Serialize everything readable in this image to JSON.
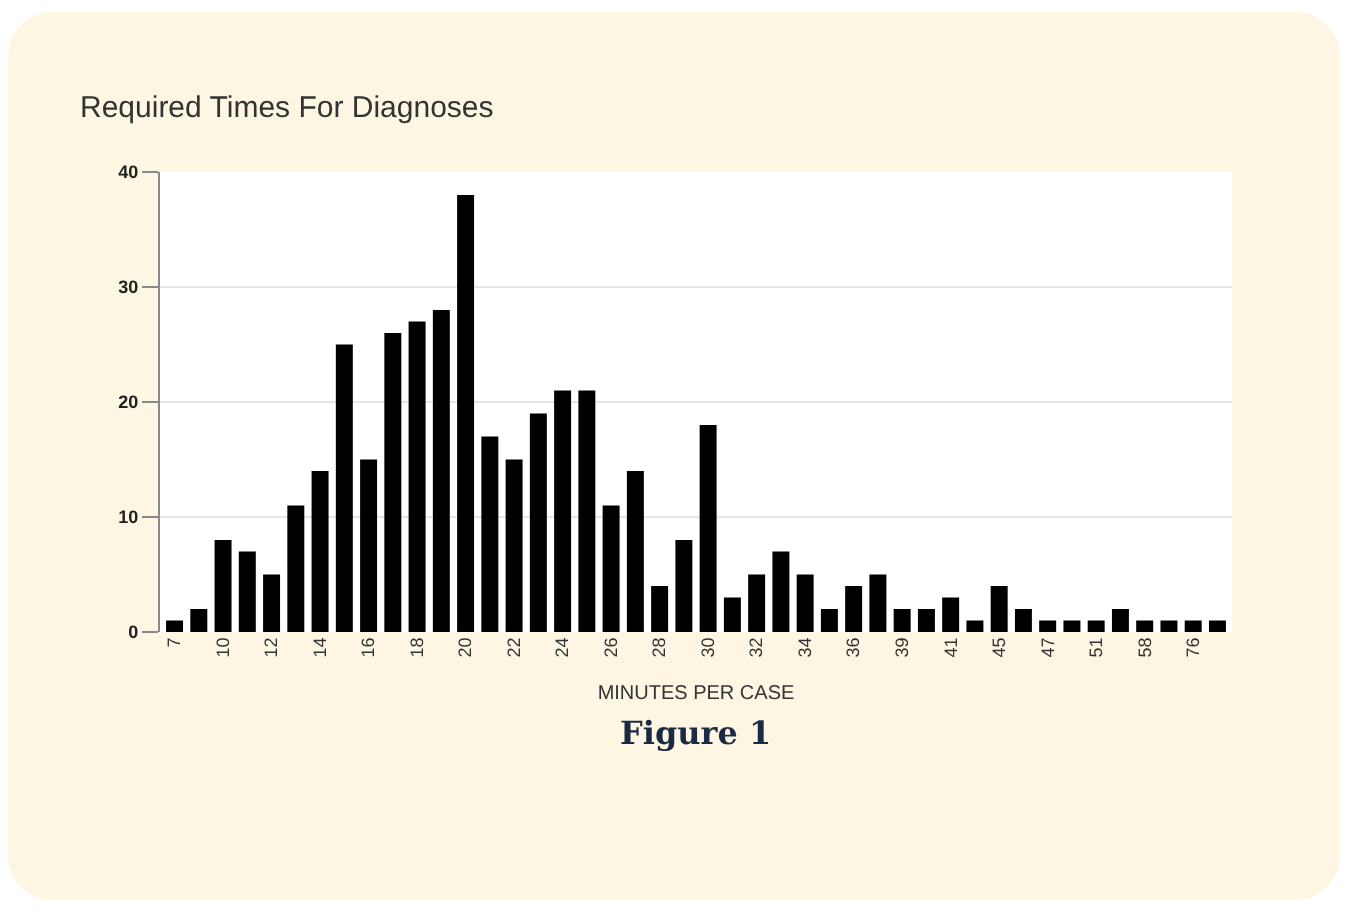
{
  "chart_data": {
    "type": "bar",
    "title": "Required Times For Diagnoses",
    "xlabel": "MINUTES PER CASE",
    "categories": [
      "7",
      null,
      "10",
      null,
      "12",
      null,
      "14",
      null,
      "16",
      null,
      "18",
      null,
      "20",
      null,
      "22",
      null,
      "24",
      null,
      "26",
      null,
      "28",
      null,
      "30",
      null,
      "32",
      null,
      "34",
      null,
      "36",
      null,
      "39",
      null,
      "41",
      null,
      "45",
      null,
      "47",
      null,
      "51",
      null,
      "58",
      null,
      "76",
      null
    ],
    "values": [
      1,
      2,
      8,
      7,
      5,
      11,
      14,
      25,
      15,
      26,
      27,
      28,
      38,
      17,
      15,
      19,
      21,
      21,
      11,
      14,
      4,
      8,
      18,
      3,
      5,
      7,
      5,
      2,
      4,
      5,
      2,
      2,
      3,
      1,
      4,
      2,
      1,
      1,
      1,
      2,
      1,
      1,
      1,
      1
    ],
    "color": "#000000",
    "ylim": [
      0,
      40
    ],
    "yticks": [
      0,
      10,
      20,
      30,
      40
    ],
    "grid": "y",
    "annotations": [
      "Figure 1"
    ]
  }
}
